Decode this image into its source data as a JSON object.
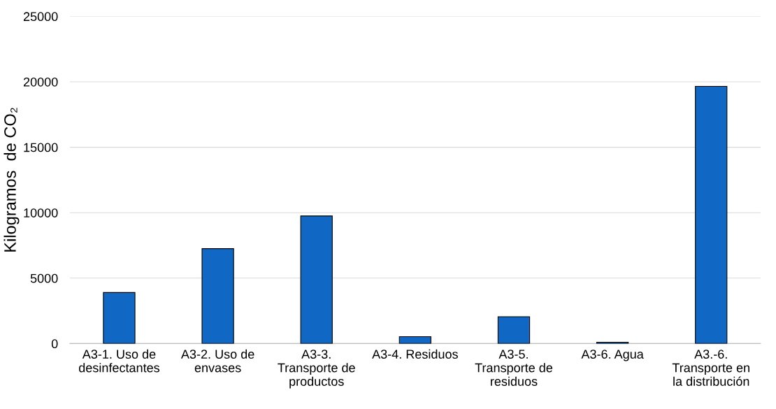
{
  "chart_data": {
    "type": "bar",
    "ylabel": "Kilogramos  de CO₂",
    "categories": [
      "A3-1. Uso de desinfectantes",
      "A3-2. Uso de envases",
      "A3-3. Transporte de productos",
      "A3-4. Residuos",
      "A3-5. Transporte de residuos",
      "A3-6. Agua",
      "A3.-6. Transporte en la distribución"
    ],
    "values": [
      3900,
      7250,
      9750,
      530,
      2050,
      100,
      19650
    ],
    "color": "#1068c4",
    "ylim": [
      0,
      25000
    ],
    "yticks": [
      0,
      5000,
      10000,
      15000,
      20000,
      25000
    ],
    "grid": "y"
  }
}
